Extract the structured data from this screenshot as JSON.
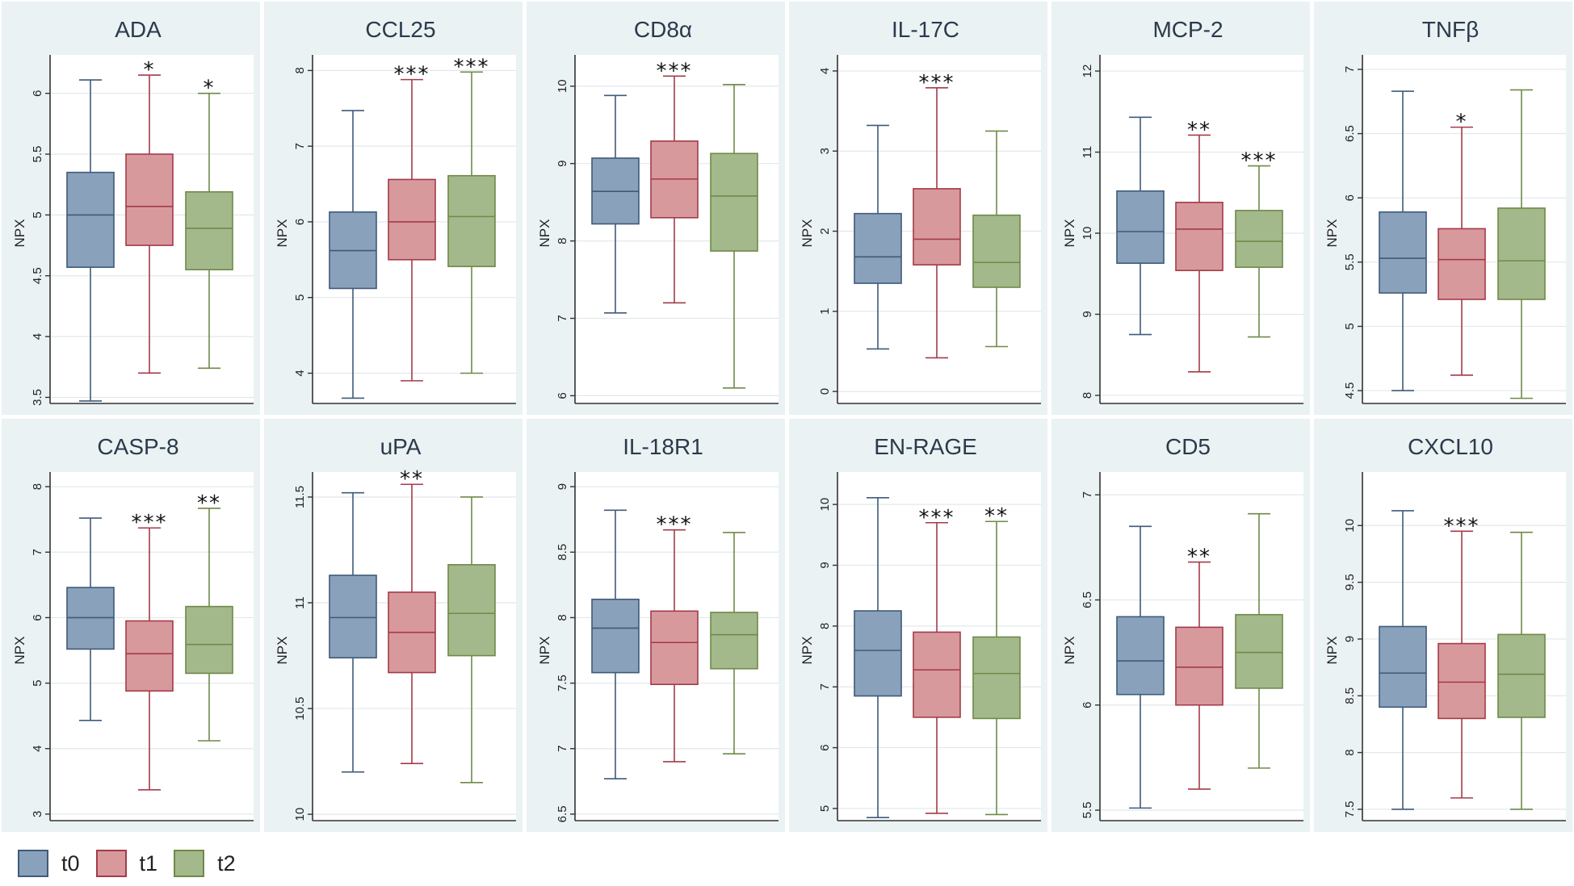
{
  "legend": {
    "items": [
      {
        "label": "t0",
        "fill": "#8aa1bb",
        "stroke": "#3f5a7a"
      },
      {
        "label": "t1",
        "fill": "#d8999c",
        "stroke": "#a33b48"
      },
      {
        "label": "t2",
        "fill": "#a3b98b",
        "stroke": "#6e8a48"
      }
    ]
  },
  "chart_data": [
    {
      "type": "box",
      "title": "ADA",
      "ylabel": "NPX",
      "ylim": [
        3.45,
        6.25
      ],
      "ticks": [
        "3.5",
        "4",
        "4.5",
        "5",
        "5.5",
        "6"
      ],
      "series": [
        {
          "name": "t0",
          "min": 3.47,
          "q1": 4.57,
          "median": 5.0,
          "q3": 5.35,
          "max": 6.11,
          "sig": ""
        },
        {
          "name": "t1",
          "min": 3.7,
          "q1": 4.75,
          "median": 5.07,
          "q3": 5.5,
          "max": 6.15,
          "sig": "*"
        },
        {
          "name": "t2",
          "min": 3.74,
          "q1": 4.55,
          "median": 4.89,
          "q3": 5.19,
          "max": 6.0,
          "sig": "*"
        }
      ]
    },
    {
      "type": "box",
      "title": "CCL25",
      "ylabel": "NPX",
      "ylim": [
        3.6,
        8.1
      ],
      "ticks": [
        "4",
        "5",
        "6",
        "7",
        "8"
      ],
      "series": [
        {
          "name": "t0",
          "min": 3.67,
          "q1": 5.12,
          "median": 5.62,
          "q3": 6.13,
          "max": 7.47,
          "sig": ""
        },
        {
          "name": "t1",
          "min": 3.9,
          "q1": 5.5,
          "median": 6.0,
          "q3": 6.56,
          "max": 7.88,
          "sig": "***"
        },
        {
          "name": "t2",
          "min": 4.0,
          "q1": 5.41,
          "median": 6.07,
          "q3": 6.61,
          "max": 7.98,
          "sig": "***"
        }
      ]
    },
    {
      "type": "box",
      "title": "CD8α",
      "ylabel": "NPX",
      "ylim": [
        5.9,
        10.3
      ],
      "ticks": [
        "6",
        "7",
        "8",
        "9",
        "10"
      ],
      "series": [
        {
          "name": "t0",
          "min": 7.07,
          "q1": 8.22,
          "median": 8.64,
          "q3": 9.07,
          "max": 9.88,
          "sig": ""
        },
        {
          "name": "t1",
          "min": 7.2,
          "q1": 8.3,
          "median": 8.8,
          "q3": 9.29,
          "max": 10.13,
          "sig": "***"
        },
        {
          "name": "t2",
          "min": 6.1,
          "q1": 7.87,
          "median": 8.58,
          "q3": 9.13,
          "max": 10.02,
          "sig": ""
        }
      ]
    },
    {
      "type": "box",
      "title": "IL-17C",
      "ylabel": "NPX",
      "ylim": [
        -0.15,
        4.1
      ],
      "ticks": [
        "0",
        "1",
        "2",
        "3",
        "4"
      ],
      "series": [
        {
          "name": "t0",
          "min": 0.53,
          "q1": 1.35,
          "median": 1.68,
          "q3": 2.22,
          "max": 3.32,
          "sig": ""
        },
        {
          "name": "t1",
          "min": 0.42,
          "q1": 1.58,
          "median": 1.9,
          "q3": 2.53,
          "max": 3.79,
          "sig": "***"
        },
        {
          "name": "t2",
          "min": 0.56,
          "q1": 1.3,
          "median": 1.61,
          "q3": 2.2,
          "max": 3.25,
          "sig": ""
        }
      ]
    },
    {
      "type": "box",
      "title": "MCP-2",
      "ylabel": "NPX",
      "ylim": [
        7.9,
        12.1
      ],
      "ticks": [
        "8",
        "9",
        "10",
        "11",
        "12"
      ],
      "series": [
        {
          "name": "t0",
          "min": 8.75,
          "q1": 9.63,
          "median": 10.02,
          "q3": 10.52,
          "max": 11.43,
          "sig": ""
        },
        {
          "name": "t1",
          "min": 8.29,
          "q1": 9.54,
          "median": 10.05,
          "q3": 10.38,
          "max": 11.21,
          "sig": "**"
        },
        {
          "name": "t2",
          "min": 8.72,
          "q1": 9.58,
          "median": 9.9,
          "q3": 10.28,
          "max": 10.83,
          "sig": "***"
        }
      ]
    },
    {
      "type": "box",
      "title": "TNFβ",
      "ylabel": "NPX",
      "ylim": [
        4.4,
        7.05
      ],
      "ticks": [
        "4.5",
        "5",
        "5.5",
        "6",
        "6.5",
        "7"
      ],
      "series": [
        {
          "name": "t0",
          "min": 4.5,
          "q1": 5.26,
          "median": 5.53,
          "q3": 5.89,
          "max": 6.83,
          "sig": ""
        },
        {
          "name": "t1",
          "min": 4.62,
          "q1": 5.21,
          "median": 5.52,
          "q3": 5.76,
          "max": 6.55,
          "sig": "*"
        },
        {
          "name": "t2",
          "min": 4.44,
          "q1": 5.21,
          "median": 5.51,
          "q3": 5.92,
          "max": 6.84,
          "sig": ""
        }
      ]
    },
    {
      "type": "box",
      "title": "CASP-8",
      "ylabel": "NPX",
      "ylim": [
        2.9,
        8.1
      ],
      "ticks": [
        "3",
        "4",
        "5",
        "6",
        "7",
        "8"
      ],
      "series": [
        {
          "name": "t0",
          "min": 4.43,
          "q1": 5.52,
          "median": 6.0,
          "q3": 6.46,
          "max": 7.52,
          "sig": ""
        },
        {
          "name": "t1",
          "min": 3.37,
          "q1": 4.88,
          "median": 5.45,
          "q3": 5.95,
          "max": 7.37,
          "sig": "***"
        },
        {
          "name": "t2",
          "min": 4.12,
          "q1": 5.15,
          "median": 5.59,
          "q3": 6.17,
          "max": 7.67,
          "sig": "**"
        }
      ]
    },
    {
      "type": "box",
      "title": "uPA",
      "ylabel": "NPX",
      "ylim": [
        9.97,
        11.58
      ],
      "ticks": [
        "10",
        "10.5",
        "11",
        "11.5"
      ],
      "series": [
        {
          "name": "t0",
          "min": 10.2,
          "q1": 10.74,
          "median": 10.93,
          "q3": 11.13,
          "max": 11.52,
          "sig": ""
        },
        {
          "name": "t1",
          "min": 10.24,
          "q1": 10.67,
          "median": 10.86,
          "q3": 11.05,
          "max": 11.56,
          "sig": "**"
        },
        {
          "name": "t2",
          "min": 10.15,
          "q1": 10.75,
          "median": 10.95,
          "q3": 11.18,
          "max": 11.5,
          "sig": ""
        }
      ]
    },
    {
      "type": "box",
      "title": "IL-18R1",
      "ylabel": "NPX",
      "ylim": [
        6.45,
        9.05
      ],
      "ticks": [
        "6.5",
        "7",
        "7.5",
        "8",
        "8.5",
        "9"
      ],
      "series": [
        {
          "name": "t0",
          "min": 6.77,
          "q1": 7.58,
          "median": 7.92,
          "q3": 8.14,
          "max": 8.82,
          "sig": ""
        },
        {
          "name": "t1",
          "min": 6.9,
          "q1": 7.49,
          "median": 7.81,
          "q3": 8.05,
          "max": 8.67,
          "sig": "***"
        },
        {
          "name": "t2",
          "min": 6.96,
          "q1": 7.61,
          "median": 7.87,
          "q3": 8.04,
          "max": 8.65,
          "sig": ""
        }
      ]
    },
    {
      "type": "box",
      "title": "EN-RAGE",
      "ylabel": "NPX",
      "ylim": [
        4.8,
        10.4
      ],
      "ticks": [
        "5",
        "6",
        "7",
        "8",
        "9",
        "10"
      ],
      "series": [
        {
          "name": "t0",
          "min": 4.85,
          "q1": 6.85,
          "median": 7.6,
          "q3": 8.25,
          "max": 10.11,
          "sig": ""
        },
        {
          "name": "t1",
          "min": 4.92,
          "q1": 6.5,
          "median": 7.28,
          "q3": 7.9,
          "max": 9.7,
          "sig": "***"
        },
        {
          "name": "t2",
          "min": 4.9,
          "q1": 6.48,
          "median": 7.22,
          "q3": 7.82,
          "max": 9.72,
          "sig": "**"
        }
      ]
    },
    {
      "type": "box",
      "title": "CD5",
      "ylabel": "NPX",
      "ylim": [
        5.45,
        7.07
      ],
      "ticks": [
        "5.5",
        "6",
        "6.5",
        "7"
      ],
      "series": [
        {
          "name": "t0",
          "min": 5.51,
          "q1": 6.05,
          "median": 6.21,
          "q3": 6.42,
          "max": 6.85,
          "sig": ""
        },
        {
          "name": "t1",
          "min": 5.6,
          "q1": 6.0,
          "median": 6.18,
          "q3": 6.37,
          "max": 6.68,
          "sig": "**"
        },
        {
          "name": "t2",
          "min": 5.7,
          "q1": 6.08,
          "median": 6.25,
          "q3": 6.43,
          "max": 6.91,
          "sig": ""
        }
      ]
    },
    {
      "type": "box",
      "title": "CXCL10",
      "ylabel": "NPX",
      "ylim": [
        7.4,
        10.4
      ],
      "ticks": [
        "7.5",
        "8",
        "8.5",
        "9",
        "9.5",
        "10"
      ],
      "series": [
        {
          "name": "t0",
          "min": 7.5,
          "q1": 8.4,
          "median": 8.7,
          "q3": 9.11,
          "max": 10.13,
          "sig": ""
        },
        {
          "name": "t1",
          "min": 7.6,
          "q1": 8.3,
          "median": 8.62,
          "q3": 8.96,
          "max": 9.95,
          "sig": "***"
        },
        {
          "name": "t2",
          "min": 7.5,
          "q1": 8.31,
          "median": 8.69,
          "q3": 9.04,
          "max": 9.94,
          "sig": ""
        }
      ]
    }
  ]
}
